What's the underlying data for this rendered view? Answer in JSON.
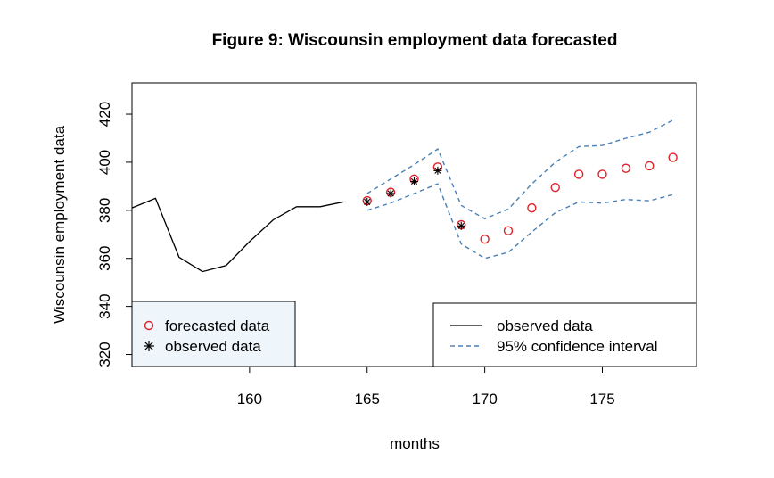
{
  "chart_data": {
    "type": "line",
    "title": "Figure 9: Wiscounsin employment data forecasted",
    "xlabel": "months",
    "ylabel": "Wiscounsin employment data",
    "xlim": [
      155,
      179
    ],
    "ylim": [
      315,
      433
    ],
    "x_ticks": [
      160,
      165,
      170,
      175
    ],
    "y_ticks": [
      320,
      340,
      360,
      380,
      400,
      420
    ],
    "grid": false,
    "colors": {
      "observed_line": "#000000",
      "confidence": "#4a7fb5",
      "forecast": "#e0202a",
      "legend_left_bg": "#eef6fc"
    },
    "series": [
      {
        "name": "observed data",
        "kind": "line",
        "x": [
          155,
          156,
          157,
          158,
          159,
          160,
          161,
          162,
          163,
          164
        ],
        "y": [
          381,
          385,
          360.5,
          354.5,
          357,
          367,
          376,
          381.5,
          381.5,
          383.5
        ]
      },
      {
        "name": "95% confidence interval",
        "kind": "dashed-line-upper",
        "x": [
          165,
          166,
          167,
          168,
          169,
          170,
          171,
          172,
          173,
          174,
          175,
          176,
          177,
          178
        ],
        "y": [
          387,
          393,
          399,
          405.5,
          382,
          376.5,
          380.5,
          391,
          400,
          406.5,
          407,
          410,
          412.5,
          417.5
        ]
      },
      {
        "name": "95% confidence interval (lower)",
        "kind": "dashed-line-lower",
        "x": [
          165,
          166,
          167,
          168,
          169,
          170,
          171,
          172,
          173,
          174,
          175,
          176,
          177,
          178
        ],
        "y": [
          380,
          383,
          387,
          391,
          366,
          360,
          362.5,
          371,
          379,
          383.5,
          383,
          384.5,
          384,
          386.5
        ]
      },
      {
        "name": "forecasted data",
        "kind": "circle-points",
        "x": [
          165,
          166,
          167,
          168,
          169,
          170,
          171,
          172,
          173,
          174,
          175,
          176,
          177,
          178
        ],
        "y": [
          384,
          387.5,
          393,
          398,
          374,
          368,
          371.5,
          381,
          389.5,
          395,
          395,
          397.5,
          398.5,
          402
        ]
      },
      {
        "name": "observed data (points)",
        "kind": "star-points",
        "x": [
          165,
          166,
          167,
          168,
          169
        ],
        "y": [
          383.5,
          387,
          392,
          396.5,
          373.5
        ]
      }
    ],
    "legends": [
      {
        "placement": "bottom-left",
        "entries": [
          {
            "label": "forecasted data",
            "symbol": "circle"
          },
          {
            "label": "observed data",
            "symbol": "star"
          }
        ]
      },
      {
        "placement": "bottom-right",
        "entries": [
          {
            "label": "observed data",
            "symbol": "line"
          },
          {
            "label": "95% confidence interval",
            "symbol": "dashed"
          }
        ]
      }
    ]
  }
}
